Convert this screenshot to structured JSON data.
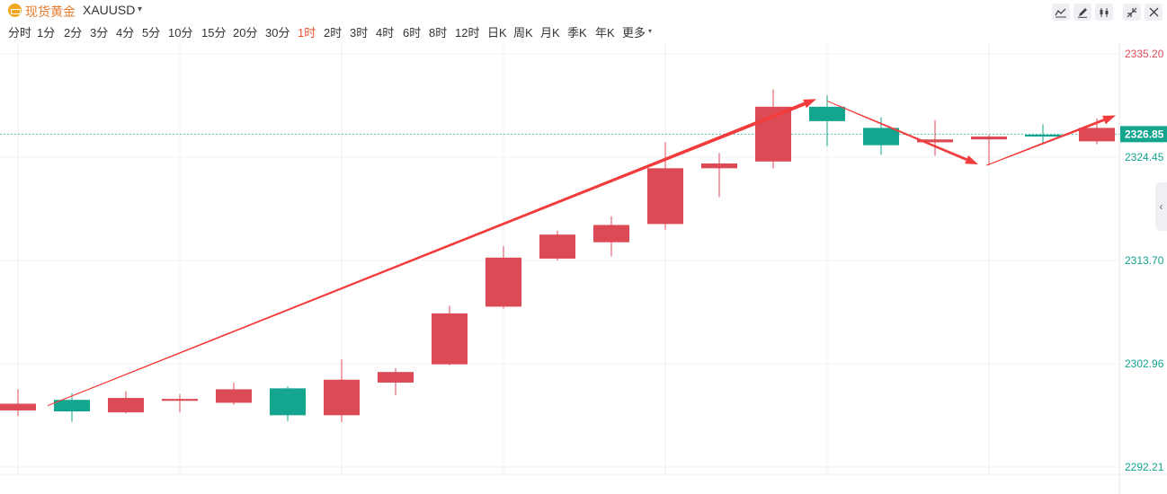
{
  "header": {
    "symbol_name": "现货黄金",
    "symbol_code": "XAUUSD",
    "caret": "▾",
    "tools": [
      "line-tool-icon",
      "pen-tool-icon",
      "candle-style-icon",
      "shrink-icon",
      "close-icon"
    ]
  },
  "timeframes": [
    {
      "label": "分时"
    },
    {
      "label": "1分"
    },
    {
      "label": "2分"
    },
    {
      "label": "3分"
    },
    {
      "label": "4分"
    },
    {
      "label": "5分"
    },
    {
      "label": "10分"
    },
    {
      "label": "15分"
    },
    {
      "label": "20分"
    },
    {
      "label": "30分"
    },
    {
      "label": "1时",
      "active": true
    },
    {
      "label": "2时"
    },
    {
      "label": "3时"
    },
    {
      "label": "4时"
    },
    {
      "label": "6时"
    },
    {
      "label": "8时"
    },
    {
      "label": "12时"
    },
    {
      "label": "日K"
    },
    {
      "label": "周K"
    },
    {
      "label": "月K"
    },
    {
      "label": "季K"
    },
    {
      "label": "年K"
    },
    {
      "label": "更多"
    }
  ],
  "colors": {
    "up": "#dc4a55",
    "down": "#14a58e",
    "annotation_arrow": "#f03c3c",
    "grid": "#f1f1f1",
    "current_price_line": "#14a58e",
    "top_label": "#dc4a55",
    "axis_label": "#14a58e"
  },
  "chart_data": {
    "type": "candlestick",
    "title": "",
    "price_axis_labels": [
      "2335.20",
      "2324.45",
      "2313.70",
      "2302.96",
      "2292.21"
    ],
    "current_price": 2326.85,
    "current_price_label": "2326.85",
    "ylim": [
      2292.21,
      2335.2
    ],
    "grid": true,
    "candles": [
      {
        "open": 2298.1,
        "close": 2298.8,
        "high": 2300.3,
        "low": 2297.5
      },
      {
        "open": 2299.2,
        "close": 2298.0,
        "high": 2299.9,
        "low": 2296.9
      },
      {
        "open": 2297.9,
        "close": 2299.4,
        "high": 2300.1,
        "low": 2297.8
      },
      {
        "open": 2299.1,
        "close": 2299.3,
        "high": 2299.8,
        "low": 2297.9
      },
      {
        "open": 2298.9,
        "close": 2300.3,
        "high": 2301.0,
        "low": 2298.7
      },
      {
        "open": 2300.4,
        "close": 2297.6,
        "high": 2300.6,
        "low": 2297.0
      },
      {
        "open": 2297.6,
        "close": 2301.3,
        "high": 2303.4,
        "low": 2296.9
      },
      {
        "open": 2301.0,
        "close": 2302.1,
        "high": 2302.5,
        "low": 2299.7
      },
      {
        "open": 2302.9,
        "close": 2308.2,
        "high": 2309.0,
        "low": 2302.8
      },
      {
        "open": 2308.9,
        "close": 2314.0,
        "high": 2315.2,
        "low": 2308.7
      },
      {
        "open": 2313.9,
        "close": 2316.4,
        "high": 2316.8,
        "low": 2313.7
      },
      {
        "open": 2315.6,
        "close": 2317.4,
        "high": 2318.3,
        "low": 2314.1
      },
      {
        "open": 2317.5,
        "close": 2323.3,
        "high": 2326.0,
        "low": 2316.9
      },
      {
        "open": 2323.3,
        "close": 2323.8,
        "high": 2324.9,
        "low": 2320.3
      },
      {
        "open": 2324.0,
        "close": 2329.7,
        "high": 2331.5,
        "low": 2323.3
      },
      {
        "open": 2329.7,
        "close": 2328.2,
        "high": 2330.9,
        "low": 2325.6
      },
      {
        "open": 2327.5,
        "close": 2325.7,
        "high": 2328.6,
        "low": 2324.7
      },
      {
        "open": 2326.0,
        "close": 2326.3,
        "high": 2328.3,
        "low": 2324.6
      },
      {
        "open": 2326.3,
        "close": 2326.6,
        "high": 2326.8,
        "low": 2323.6
      },
      {
        "open": 2326.8,
        "close": 2326.6,
        "high": 2327.9,
        "low": 2325.8
      },
      {
        "open": 2326.1,
        "close": 2327.5,
        "high": 2328.5,
        "low": 2325.8
      }
    ],
    "annotations": [
      {
        "type": "arrow",
        "from": {
          "bar": 0.55,
          "price": 2298.6
        },
        "to": {
          "bar": 14.8,
          "price": 2330.5
        }
      },
      {
        "type": "arrow",
        "from": {
          "bar": 15.0,
          "price": 2330.3
        },
        "to": {
          "bar": 17.8,
          "price": 2323.7
        }
      },
      {
        "type": "arrow",
        "from": {
          "bar": 17.95,
          "price": 2323.6
        },
        "to": {
          "bar": 20.35,
          "price": 2328.8
        }
      }
    ]
  }
}
